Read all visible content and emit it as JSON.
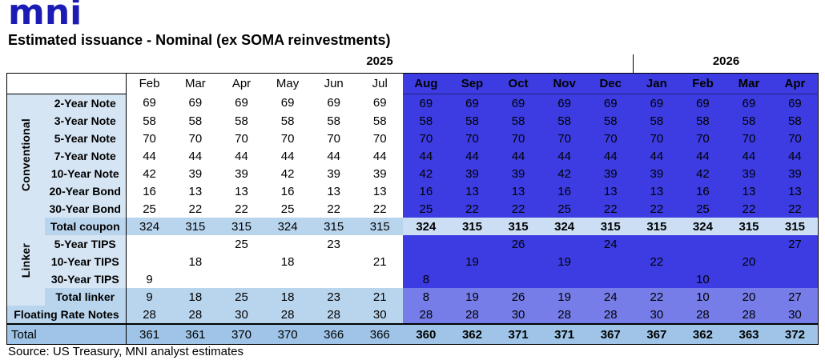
{
  "logo": {
    "text": "mni"
  },
  "title": "Estimated issuance - Nominal (ex SOMA reinvestments)",
  "source": "Source: US Treasury, MNI analyst estimates",
  "years": [
    "2025",
    "2026"
  ],
  "colors": {
    "logo_blue": "#1C1CB4",
    "dark_blue": "#3C3CE2",
    "periwinkle": "#767CE8",
    "label_light_blue": "#D6E5F4",
    "subtotal_blue": "#B9D5EE",
    "coupon_right_blue": "#CBDEF3",
    "total_row_blue": "#9FC4E7"
  },
  "chart_data": {
    "type": "table",
    "title": "Estimated issuance - Nominal (ex SOMA reinvestments)",
    "column_groups": [
      {
        "label": "2025",
        "span": 11
      },
      {
        "label": "2026",
        "span": 4
      }
    ],
    "columns": [
      "Feb",
      "Mar",
      "Apr",
      "May",
      "Jun",
      "Jul",
      "Aug",
      "Sep",
      "Oct",
      "Nov",
      "Dec",
      "Jan",
      "Feb",
      "Mar",
      "Apr"
    ],
    "highlight_start": 6,
    "rows": [
      {
        "label": "2-Year Note",
        "group": "Conventional",
        "values": [
          69,
          69,
          69,
          69,
          69,
          69,
          69,
          69,
          69,
          69,
          69,
          69,
          69,
          69,
          69
        ]
      },
      {
        "label": "3-Year Note",
        "group": "Conventional",
        "values": [
          58,
          58,
          58,
          58,
          58,
          58,
          58,
          58,
          58,
          58,
          58,
          58,
          58,
          58,
          58
        ]
      },
      {
        "label": "5-Year Note",
        "group": "Conventional",
        "values": [
          70,
          70,
          70,
          70,
          70,
          70,
          70,
          70,
          70,
          70,
          70,
          70,
          70,
          70,
          70
        ]
      },
      {
        "label": "7-Year Note",
        "group": "Conventional",
        "values": [
          44,
          44,
          44,
          44,
          44,
          44,
          44,
          44,
          44,
          44,
          44,
          44,
          44,
          44,
          44
        ]
      },
      {
        "label": "10-Year Note",
        "group": "Conventional",
        "values": [
          42,
          39,
          39,
          42,
          39,
          39,
          42,
          39,
          39,
          42,
          39,
          39,
          42,
          39,
          39
        ]
      },
      {
        "label": "20-Year Bond",
        "group": "Conventional",
        "values": [
          16,
          13,
          13,
          16,
          13,
          13,
          16,
          13,
          13,
          16,
          13,
          13,
          16,
          13,
          13
        ]
      },
      {
        "label": "30-Year Bond",
        "group": "Conventional",
        "values": [
          25,
          22,
          22,
          25,
          22,
          22,
          25,
          22,
          22,
          25,
          22,
          22,
          25,
          22,
          22
        ]
      },
      {
        "label": "Total coupon",
        "kind": "subtotal-light",
        "values": [
          324,
          315,
          315,
          324,
          315,
          315,
          324,
          315,
          315,
          324,
          315,
          315,
          324,
          315,
          315
        ]
      },
      {
        "label": "5-Year TIPS",
        "group": "Linker",
        "values": [
          "",
          "",
          25,
          "",
          23,
          "",
          "",
          "",
          26,
          "",
          24,
          "",
          "",
          "",
          27
        ]
      },
      {
        "label": "10-Year TIPS",
        "group": "Linker",
        "values": [
          "",
          18,
          "",
          18,
          "",
          21,
          "",
          19,
          "",
          19,
          "",
          22,
          "",
          20,
          ""
        ]
      },
      {
        "label": "30-Year TIPS",
        "group": "Linker",
        "values": [
          9,
          "",
          "",
          "",
          "",
          "",
          8,
          "",
          "",
          "",
          "",
          "",
          10,
          "",
          ""
        ]
      },
      {
        "label": "Total linker",
        "kind": "subtotal-peri",
        "values": [
          9,
          18,
          25,
          18,
          23,
          21,
          8,
          19,
          26,
          19,
          24,
          22,
          10,
          20,
          27
        ]
      },
      {
        "label": "Floating Rate Notes",
        "kind": "frn",
        "values": [
          28,
          28,
          30,
          28,
          28,
          30,
          28,
          28,
          30,
          28,
          28,
          30,
          28,
          28,
          30
        ]
      },
      {
        "label": "Total",
        "kind": "grand",
        "values": [
          361,
          361,
          370,
          370,
          366,
          366,
          360,
          362,
          371,
          371,
          367,
          367,
          362,
          363,
          372
        ]
      }
    ]
  }
}
